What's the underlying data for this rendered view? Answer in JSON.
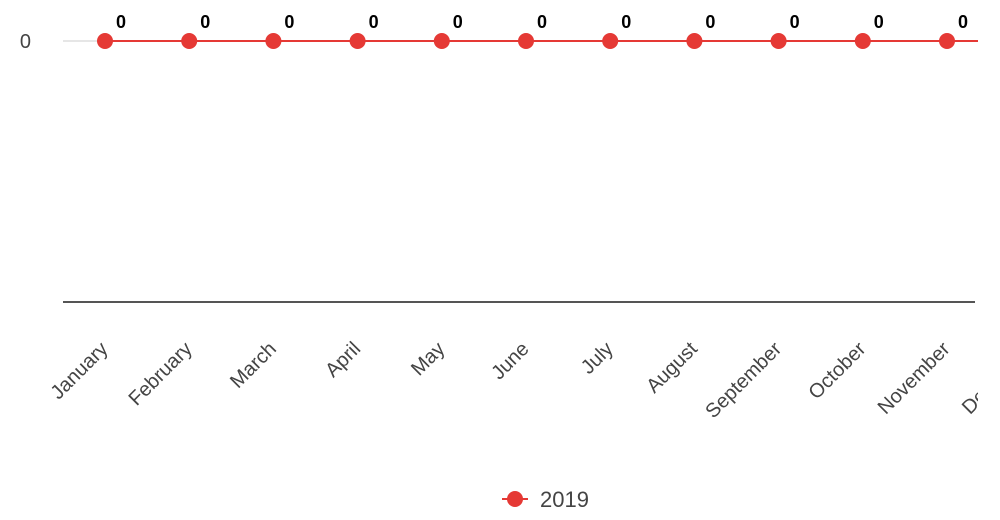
{
  "chart_data": {
    "type": "line",
    "categories": [
      "January",
      "February",
      "March",
      "April",
      "May",
      "June",
      "July",
      "August",
      "September",
      "October",
      "November",
      "December"
    ],
    "series": [
      {
        "name": "2019",
        "values": [
          0,
          0,
          0,
          0,
          0,
          0,
          0,
          0,
          0,
          0,
          0,
          0
        ],
        "color": "#e53935"
      }
    ],
    "y_ticks": [
      "0"
    ],
    "data_labels_shown": true,
    "legend": {
      "position": "bottom",
      "entries": [
        "2019"
      ]
    },
    "colors": {
      "series": "#e53935",
      "axis": "#555555",
      "gridline": "#e6e6e6",
      "text": "#444444"
    }
  }
}
